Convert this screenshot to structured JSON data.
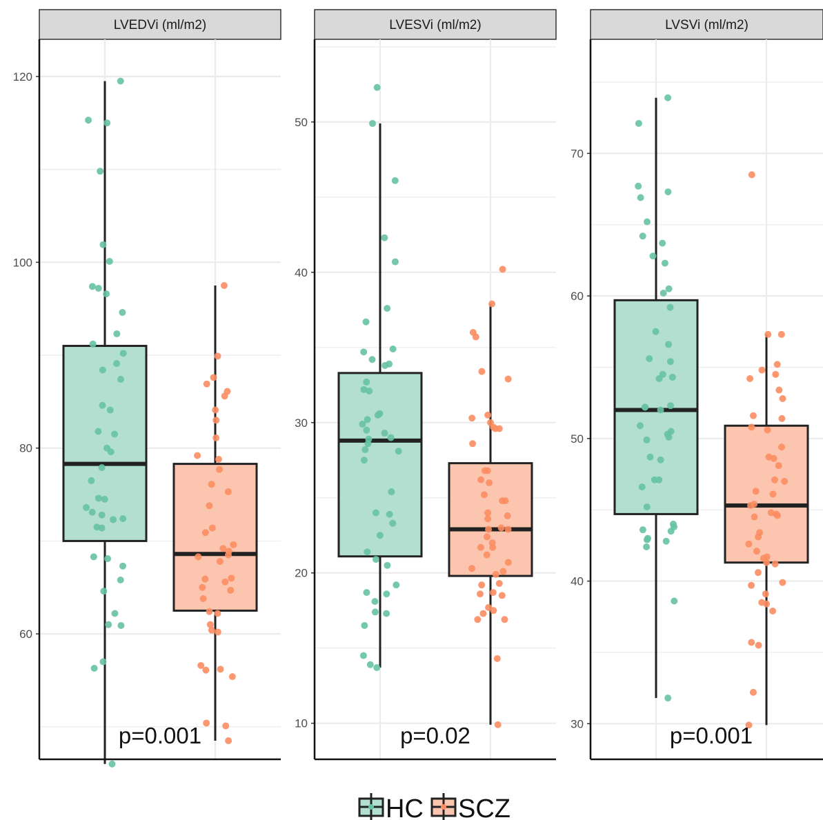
{
  "chart_data": [
    {
      "type": "boxplot",
      "title": "LVEDVi (ml/m2)",
      "annotation": "p=0.001",
      "yticks": [
        60,
        80,
        100,
        120
      ],
      "ylim": [
        46.5,
        124
      ],
      "grid": true,
      "categories": [
        "HC",
        "SCZ"
      ],
      "series": [
        {
          "name": "HC",
          "box": {
            "min": 46,
            "q1": 70,
            "median": 78.3,
            "q3": 91,
            "max": 119.5
          },
          "points": [
            119.5,
            115.3,
            115,
            109.8,
            101.9,
            100.1,
            97.4,
            97.2,
            96.6,
            94.6,
            92.3,
            91.2,
            90.2,
            89.1,
            88.4,
            87.4,
            84.6,
            84.1,
            81.8,
            81.5,
            80,
            79.6,
            77.9,
            76.5,
            74.6,
            74.5,
            73.6,
            73.1,
            72.8,
            72.4,
            72.3,
            71.5,
            71.4,
            68.3,
            68.1,
            67.3,
            65.8,
            64.6,
            62.2,
            61,
            60.9,
            57,
            56.3,
            46
          ]
        },
        {
          "name": "SCZ",
          "box": {
            "min": 48.5,
            "q1": 62.5,
            "median": 68.6,
            "q3": 78.3,
            "max": 97.5
          },
          "points": [
            97.5,
            89.9,
            87.6,
            86.9,
            86.1,
            85.6,
            84.1,
            83,
            81.1,
            79.2,
            78.8,
            77.7,
            76.1,
            75.3,
            73.8,
            71.4,
            70.9,
            69.6,
            69.2,
            68.9,
            68.5,
            68.3,
            67.8,
            66,
            65.9,
            65.6,
            65,
            64.7,
            63.8,
            62.4,
            62.2,
            61,
            60.4,
            60.2,
            56.6,
            56.2,
            55.4,
            56.1,
            50.4,
            50.1,
            48.5
          ]
        }
      ]
    },
    {
      "type": "boxplot",
      "title": "LVESVi (ml/m2)",
      "annotation": "p=0.02",
      "yticks": [
        10,
        20,
        30,
        40,
        50
      ],
      "ylim": [
        7.6,
        55.5
      ],
      "grid": true,
      "categories": [
        "HC",
        "SCZ"
      ],
      "series": [
        {
          "name": "HC",
          "box": {
            "min": 13.7,
            "q1": 21.1,
            "median": 28.8,
            "q3": 33.3,
            "max": 49.9
          },
          "points": [
            52.3,
            49.9,
            46.1,
            42.3,
            40.7,
            37.6,
            36.7,
            34.9,
            34.7,
            34.2,
            33.9,
            33.8,
            32.7,
            32.2,
            32.1,
            30.6,
            30.5,
            30.2,
            29.9,
            29.5,
            29.3,
            29,
            28.9,
            28.6,
            28.2,
            28.1,
            27.5,
            25.4,
            24,
            23.9,
            23.3,
            22.5,
            21.4,
            20.9,
            20.5,
            19.2,
            18.7,
            18.6,
            18.1,
            17.4,
            17.3,
            16.5,
            14.5,
            13.9,
            13.7
          ]
        },
        {
          "name": "SCZ",
          "box": {
            "min": 9.9,
            "q1": 19.8,
            "median": 22.9,
            "q3": 27.3,
            "max": 37.9
          },
          "points": [
            40.2,
            37.9,
            36,
            35.7,
            33.4,
            32.9,
            30.5,
            30.3,
            30,
            29.7,
            29.6,
            29.6,
            28.6,
            26.8,
            26.8,
            26.2,
            26,
            25.2,
            24.8,
            24.8,
            24,
            23.8,
            23.6,
            23,
            22.9,
            22.9,
            22.4,
            22,
            21.7,
            21.7,
            21.2,
            20.7,
            20.3,
            20.1,
            19.9,
            19.3,
            19.2,
            18.7,
            18.6,
            18.5,
            17.7,
            17.5,
            17.3,
            16.9,
            16.9,
            14.3,
            9.9
          ]
        }
      ]
    },
    {
      "type": "boxplot",
      "title": "LVSVi (ml/m2)",
      "annotation": "p=0.001",
      "yticks": [
        30,
        40,
        50,
        60,
        70
      ],
      "ylim": [
        27.5,
        78
      ],
      "grid": true,
      "categories": [
        "HC",
        "SCZ"
      ],
      "series": [
        {
          "name": "HC",
          "box": {
            "min": 31.8,
            "q1": 44.7,
            "median": 52,
            "q3": 59.7,
            "max": 73.9
          },
          "points": [
            73.9,
            72.1,
            67.7,
            67.3,
            66.9,
            65.2,
            64.2,
            63.7,
            62.8,
            62.3,
            60.5,
            60.2,
            59.2,
            57.5,
            56.6,
            55.6,
            55.4,
            54.5,
            54.3,
            54.2,
            52.3,
            52.2,
            52.2,
            52,
            50.9,
            50.5,
            50.3,
            50.1,
            49.9,
            48.7,
            48.5,
            47.1,
            47.1,
            46.6,
            45.2,
            44,
            43.8,
            43.6,
            43.5,
            43,
            42.9,
            42.8,
            42.4,
            38.6,
            31.8
          ]
        },
        {
          "name": "SCZ",
          "box": {
            "min": 29.9,
            "q1": 41.3,
            "median": 45.3,
            "q3": 50.9,
            "max": 57.3
          },
          "points": [
            68.5,
            57.3,
            57.3,
            55.2,
            54.8,
            54.5,
            54.2,
            53.4,
            52.8,
            51.6,
            51.4,
            50.8,
            50.6,
            49.4,
            48.7,
            48.6,
            48.1,
            47.1,
            47,
            46.3,
            46.1,
            45.4,
            45.3,
            44.8,
            44.7,
            44.6,
            44.5,
            43.4,
            43.1,
            42.6,
            42.1,
            41.7,
            41.6,
            41.3,
            41.2,
            40.6,
            39.9,
            39.7,
            39.1,
            38.5,
            38.4,
            37.9,
            35.7,
            35.5,
            32.2,
            29.9
          ]
        }
      ]
    }
  ],
  "legend": {
    "position": "bottom",
    "items": [
      {
        "label": "HC",
        "fill": "#b2dfd0",
        "dot": "#66c2a5"
      },
      {
        "label": "SCZ",
        "fill": "#fcc5af",
        "dot": "#fc8d62"
      }
    ]
  },
  "colors": {
    "HC_fill": "#b2dfd0",
    "HC_point": "#66c2a5",
    "SCZ_fill": "#fcc5af",
    "SCZ_point": "#fc8d62",
    "box_line": "#222222",
    "grid": "#ebebeb",
    "strip_fill": "#d9d9d9"
  }
}
